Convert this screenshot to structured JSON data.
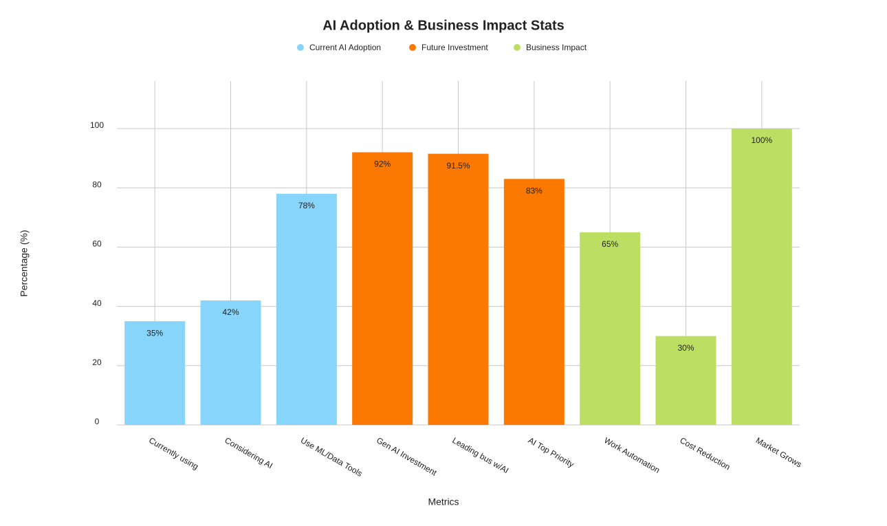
{
  "chart_data": {
    "type": "bar",
    "title": "AI Adoption & Business Impact Stats",
    "x_label": "Metrics",
    "y_label": "Percentage (%)",
    "categories": [
      "Currently using",
      "Considering AI",
      "Use ML/Data Tools",
      "Gen AI Investment",
      "Leading bus w/AI",
      "AI Top Priority",
      "Work Automation",
      "Cost Reduction",
      "Market Grows"
    ],
    "series": [
      {
        "name": "Current AI Adoption",
        "color": "#87d5fa",
        "values": [
          35,
          42,
          78,
          null,
          null,
          null,
          null,
          null,
          null
        ],
        "value_labels": [
          "35%",
          "42%",
          "78%",
          null,
          null,
          null,
          null,
          null,
          null
        ]
      },
      {
        "name": "Future Investment",
        "color": "#fb7900",
        "values": [
          null,
          null,
          null,
          92,
          91.5,
          83,
          null,
          null,
          null
        ],
        "value_labels": [
          null,
          null,
          null,
          "92%",
          "91.5%",
          "83%",
          null,
          null,
          null
        ]
      },
      {
        "name": "Business Impact",
        "color": "#bcdf63",
        "values": [
          null,
          null,
          null,
          null,
          null,
          null,
          65,
          30,
          100
        ],
        "value_labels": [
          null,
          null,
          null,
          null,
          null,
          null,
          "65%",
          "30%",
          "100%"
        ]
      }
    ],
    "ylim": [
      0,
      116
    ],
    "yticks": [
      0,
      20,
      40,
      60,
      80,
      100
    ],
    "grid": true,
    "legend": "top"
  }
}
